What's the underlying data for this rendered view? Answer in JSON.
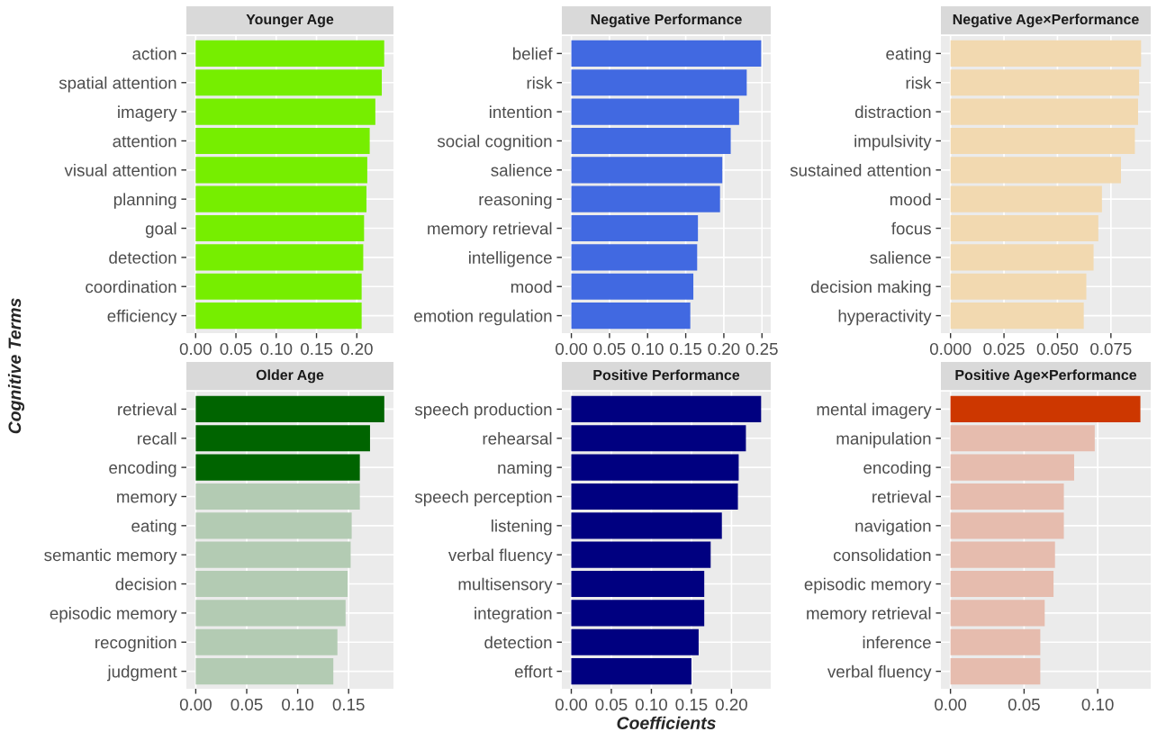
{
  "chart_data": [
    {
      "type": "bar",
      "orientation": "horizontal",
      "title": "Younger Age",
      "ylabel": "Cognitive Terms",
      "categories": [
        "action",
        "spatial attention",
        "imagery",
        "attention",
        "visual attention",
        "planning",
        "goal",
        "detection",
        "coordination",
        "efficiency"
      ],
      "values": [
        0.234,
        0.231,
        0.223,
        0.216,
        0.213,
        0.212,
        0.209,
        0.208,
        0.206,
        0.206
      ],
      "colors": [
        "#76ee00",
        "#76ee00",
        "#76ee00",
        "#76ee00",
        "#76ee00",
        "#76ee00",
        "#76ee00",
        "#76ee00",
        "#76ee00",
        "#76ee00"
      ],
      "xlim": [
        -0.0115,
        0.2455
      ],
      "xticks": [
        {
          "value": 0,
          "label": "0.00"
        },
        0.05,
        {
          "value": 0.1,
          "label": "0.10"
        },
        0.15,
        {
          "value": 0.2,
          "label": "0.20"
        }
      ],
      "grid": true
    },
    {
      "type": "bar",
      "orientation": "horizontal",
      "title": "Negative Performance",
      "categories": [
        "belief",
        "risk",
        "intention",
        "social cognition",
        "salience",
        "reasoning",
        "memory retrieval",
        "intelligence",
        "mood",
        "emotion regulation"
      ],
      "values": [
        0.249,
        0.23,
        0.22,
        0.209,
        0.198,
        0.195,
        0.166,
        0.165,
        0.16,
        0.156
      ],
      "colors": [
        "#4169e1",
        "#4169e1",
        "#4169e1",
        "#4169e1",
        "#4169e1",
        "#4169e1",
        "#4169e1",
        "#4169e1",
        "#4169e1",
        "#4169e1"
      ],
      "xlim": [
        -0.0125,
        0.2615
      ],
      "xticks": [
        {
          "value": 0,
          "label": "0.00"
        },
        0.05,
        {
          "value": 0.1,
          "label": "0.10"
        },
        0.15,
        {
          "value": 0.2,
          "label": "0.20"
        },
        0.25
      ],
      "grid": true
    },
    {
      "type": "bar",
      "orientation": "horizontal",
      "title": "Negative Age×Performance",
      "categories": [
        "eating",
        "risk",
        "distraction",
        "impulsivity",
        "sustained attention",
        "mood",
        "focus",
        "salience",
        "decision making",
        "hyperactivity"
      ],
      "values": [
        0.0891,
        0.0882,
        0.0877,
        0.0862,
        0.0797,
        0.0708,
        0.0691,
        0.0669,
        0.0635,
        0.0623
      ],
      "colors": [
        "#f2d9b0",
        "#f2d9b0",
        "#f2d9b0",
        "#f2d9b0",
        "#f2d9b0",
        "#f2d9b0",
        "#f2d9b0",
        "#f2d9b0",
        "#f2d9b0",
        "#f2d9b0"
      ],
      "xlim": [
        -0.0045,
        0.0936
      ],
      "xticks": [
        {
          "value": 0,
          "label": "0.000"
        },
        0.025,
        {
          "value": 0.05,
          "label": "0.050"
        },
        0.075
      ],
      "grid": true
    },
    {
      "type": "bar",
      "orientation": "horizontal",
      "title": "Older Age",
      "categories": [
        "retrieval",
        "recall",
        "encoding",
        "memory",
        "eating",
        "semantic memory",
        "decision",
        "episodic memory",
        "recognition",
        "judgment"
      ],
      "values": [
        0.185,
        0.171,
        0.161,
        0.161,
        0.153,
        0.152,
        0.149,
        0.147,
        0.139,
        0.135
      ],
      "colors": [
        "#006400",
        "#006400",
        "#006400",
        "#b3cbb3",
        "#b3cbb3",
        "#b3cbb3",
        "#b3cbb3",
        "#b3cbb3",
        "#b3cbb3",
        "#b3cbb3"
      ],
      "xlim": [
        -0.0092,
        0.194
      ],
      "xticks": [
        {
          "value": 0,
          "label": "0.00"
        },
        0.05,
        {
          "value": 0.1,
          "label": "0.10"
        },
        0.15
      ],
      "grid": true
    },
    {
      "type": "bar",
      "orientation": "horizontal",
      "title": "Positive Performance",
      "xlabel": "Coefficients",
      "categories": [
        "speech production",
        "rehearsal",
        "naming",
        "speech perception",
        "listening",
        "verbal fluency",
        "multisensory",
        "integration",
        "detection",
        "effort"
      ],
      "values": [
        0.237,
        0.218,
        0.209,
        0.208,
        0.188,
        0.174,
        0.166,
        0.166,
        0.159,
        0.15
      ],
      "colors": [
        "#000080",
        "#000080",
        "#000080",
        "#000080",
        "#000080",
        "#000080",
        "#000080",
        "#000080",
        "#000080",
        "#000080"
      ],
      "xlim": [
        -0.0118,
        0.249
      ],
      "xticks": [
        {
          "value": 0,
          "label": "0.00"
        },
        0.05,
        {
          "value": 0.1,
          "label": "0.10"
        },
        0.15,
        {
          "value": 0.2,
          "label": "0.20"
        }
      ],
      "grid": true
    },
    {
      "type": "bar",
      "orientation": "horizontal",
      "title": "Positive Age×Performance",
      "categories": [
        "mental imagery",
        "manipulation",
        "encoding",
        "retrieval",
        "navigation",
        "consolidation",
        "episodic memory",
        "memory retrieval",
        "inference",
        "verbal fluency"
      ],
      "values": [
        0.129,
        0.098,
        0.084,
        0.077,
        0.077,
        0.071,
        0.07,
        0.064,
        0.061,
        0.061
      ],
      "colors": [
        "#cd3700",
        "#e6bcae",
        "#e6bcae",
        "#e6bcae",
        "#e6bcae",
        "#e6bcae",
        "#e6bcae",
        "#e6bcae",
        "#e6bcae",
        "#e6bcae"
      ],
      "xlim": [
        -0.0065,
        0.136
      ],
      "xticks": [
        {
          "value": 0,
          "label": "0.00"
        },
        0.05,
        {
          "value": 0.1,
          "label": "0.10"
        }
      ],
      "grid": true
    }
  ]
}
